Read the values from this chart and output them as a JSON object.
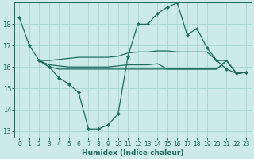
{
  "bg_color": "#cceae7",
  "line_color": "#1e6b5e",
  "grid_color": "#a8d8d0",
  "xlabel": "Humidex (Indice chaleur)",
  "xlim": [
    -0.5,
    23.5
  ],
  "ylim": [
    12.7,
    19.0
  ],
  "yticks": [
    13,
    14,
    15,
    16,
    17,
    18
  ],
  "xticks": [
    0,
    1,
    2,
    3,
    4,
    5,
    6,
    7,
    8,
    9,
    10,
    11,
    12,
    13,
    14,
    15,
    16,
    17,
    18,
    19,
    20,
    21,
    22,
    23
  ],
  "line_main": {
    "x": [
      0,
      1,
      2,
      3,
      4,
      5,
      6,
      7,
      8,
      9,
      10,
      11,
      12,
      13,
      14,
      15,
      16,
      17,
      18,
      19,
      20,
      21,
      22,
      23
    ],
    "y": [
      18.3,
      17.0,
      16.3,
      16.0,
      15.5,
      15.2,
      14.8,
      13.1,
      13.1,
      13.3,
      13.8,
      16.5,
      18.0,
      18.0,
      18.5,
      18.8,
      19.0,
      17.5,
      17.8,
      16.9,
      16.3,
      15.9,
      15.7,
      15.75
    ]
  },
  "line_upper_flat": {
    "x": [
      2,
      3,
      4,
      5,
      6,
      7,
      8,
      9,
      10,
      11,
      12,
      13,
      14,
      15,
      16,
      17,
      18,
      19,
      20,
      21,
      22,
      23
    ],
    "y": [
      16.3,
      16.3,
      16.35,
      16.4,
      16.45,
      16.45,
      16.45,
      16.45,
      16.5,
      16.65,
      16.7,
      16.7,
      16.75,
      16.75,
      16.7,
      16.7,
      16.7,
      16.7,
      16.3,
      16.3,
      15.7,
      15.75
    ]
  },
  "line_mid_flat": {
    "x": [
      2,
      3,
      4,
      5,
      6,
      7,
      8,
      9,
      10,
      11,
      12,
      13,
      14,
      15,
      16,
      17,
      18,
      19,
      20,
      21,
      22,
      23
    ],
    "y": [
      16.3,
      16.1,
      16.05,
      16.0,
      16.0,
      16.0,
      16.0,
      16.0,
      16.05,
      16.1,
      16.1,
      16.1,
      16.15,
      15.9,
      15.9,
      15.9,
      15.9,
      15.9,
      15.9,
      16.3,
      15.7,
      15.75
    ]
  },
  "line_lower_flat": {
    "x": [
      2,
      3,
      4,
      5,
      6,
      7,
      8,
      9,
      10,
      11,
      12,
      13,
      14,
      15,
      16,
      17,
      18,
      19,
      20,
      21,
      22,
      23
    ],
    "y": [
      16.3,
      16.0,
      15.9,
      15.9,
      15.9,
      15.9,
      15.9,
      15.9,
      15.9,
      15.9,
      15.9,
      15.9,
      15.9,
      15.9,
      15.9,
      15.9,
      15.9,
      15.9,
      15.9,
      16.3,
      15.7,
      15.75
    ]
  }
}
